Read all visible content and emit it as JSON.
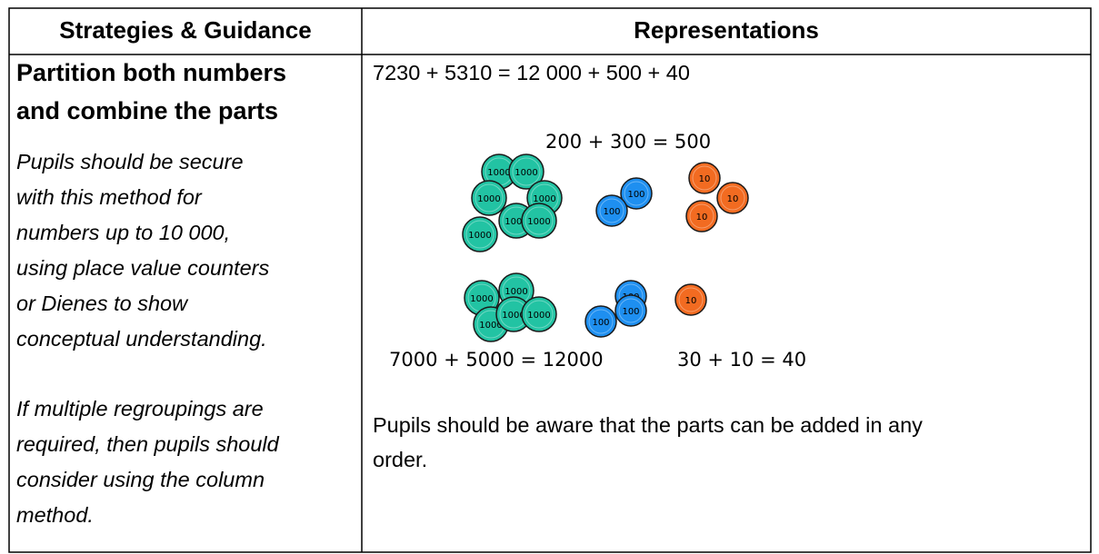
{
  "table": {
    "header": [
      "Strategies & Guidance",
      "Representations"
    ],
    "strategy": {
      "title": [
        "Partition both numbers",
        "and combine the parts"
      ],
      "paragraphs": [
        [
          "Pupils should be secure",
          "with this method for",
          "numbers up to 10 000,",
          "using place value counters",
          "or Dienes to show",
          "conceptual understanding."
        ],
        [
          "If multiple regroupings are",
          "required, then pupils should",
          "consider using the column",
          "method."
        ]
      ]
    },
    "representation": {
      "equation": "7230 + 5310 = 12 000 + 500 + 40",
      "labels": [
        "200 + 300 = 500",
        "7000 + 5000 = 12000",
        "30 + 10 = 40"
      ],
      "counter_groups": [
        {
          "labels": [
            "1000",
            "1000",
            "1000",
            "1000",
            "1000",
            "1000",
            "1000"
          ]
        },
        {
          "labels": [
            "100",
            "100"
          ]
        },
        {
          "labels": [
            "10",
            "10",
            "10"
          ]
        },
        {
          "labels": [
            "1000",
            "1000",
            "1000",
            "1000",
            "1000"
          ]
        },
        {
          "labels": [
            "100",
            "100",
            "100"
          ]
        },
        {
          "labels": [
            "10"
          ]
        }
      ],
      "note": [
        "Pupils should be aware that the parts can be added in any",
        "order."
      ]
    }
  }
}
